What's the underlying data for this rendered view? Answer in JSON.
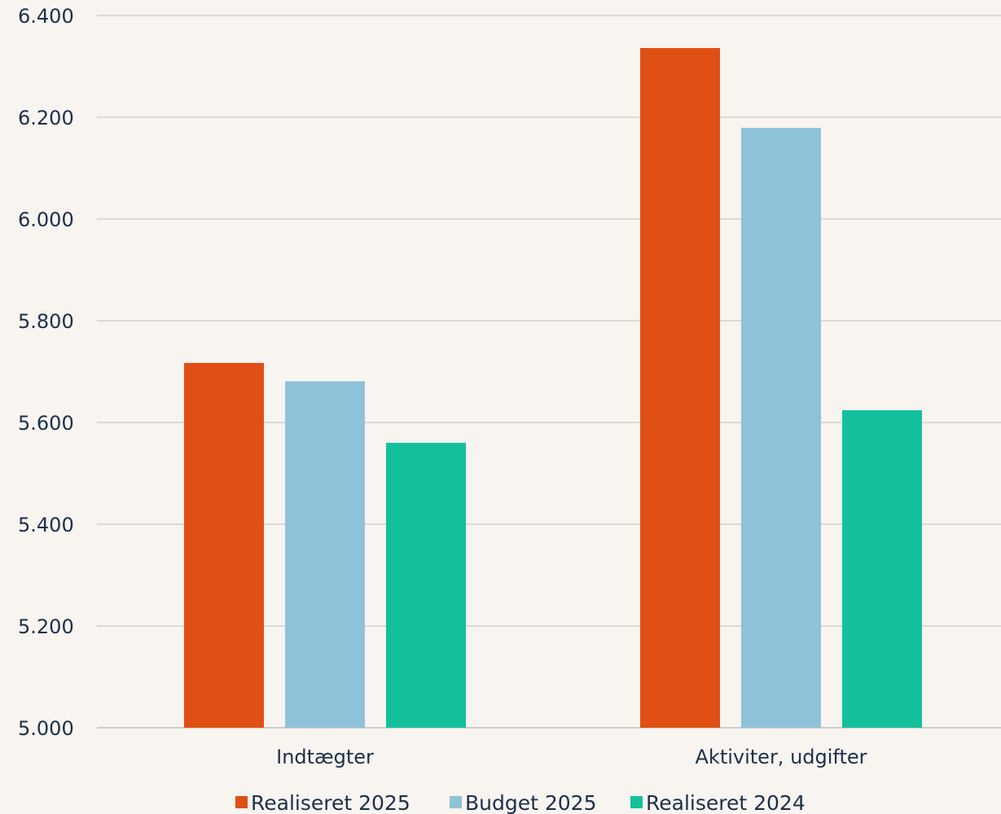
{
  "chart_data": {
    "type": "bar",
    "categories": [
      "Indtægter",
      "Aktiviter, udgifter"
    ],
    "series": [
      {
        "name": "Realiseret 2025",
        "color": "#e04f14",
        "values": [
          5717,
          6336
        ]
      },
      {
        "name": "Budget 2025",
        "color": "#8ec2d9",
        "values": [
          5681,
          6179
        ]
      },
      {
        "name": "Realiseret 2024",
        "color": "#14c09b",
        "values": [
          5560,
          5624
        ]
      }
    ],
    "y_ticks": [
      "5.000",
      "5.200",
      "5.400",
      "5.600",
      "5.800",
      "6.000",
      "6.200",
      "6.400"
    ],
    "ylim": [
      5000,
      6400
    ],
    "grid": true,
    "legend_position": "bottom-center",
    "title": "",
    "xlabel": "",
    "ylabel": ""
  }
}
